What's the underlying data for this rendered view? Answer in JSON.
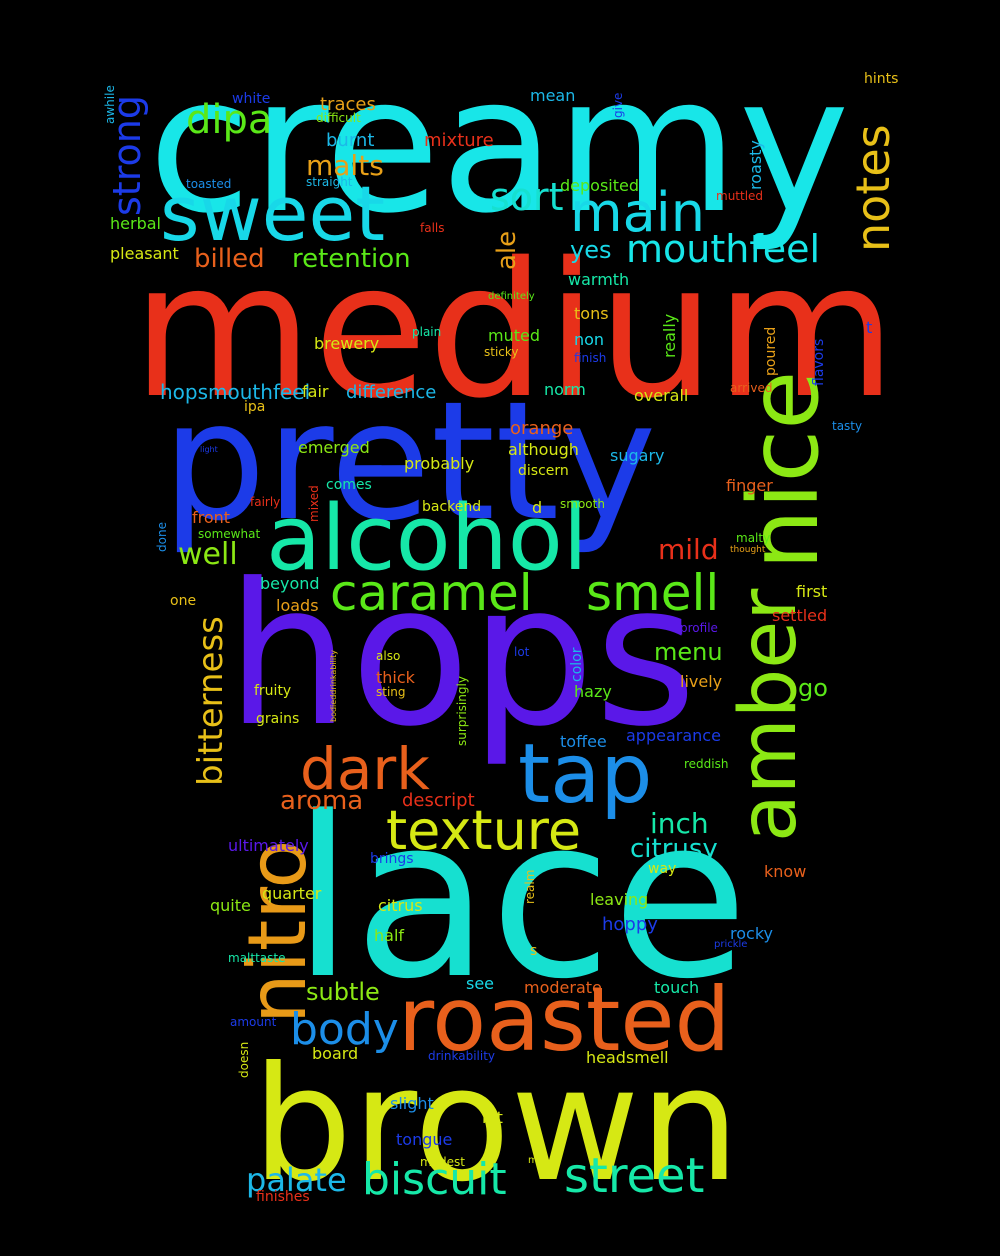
{
  "words": [
    {
      "text": "creamy",
      "color": "#18e6e8"
    },
    {
      "text": "medium",
      "color": "#e8301a"
    },
    {
      "text": "pretty",
      "color": "#1c3be8"
    },
    {
      "text": "hops",
      "color": "#5a18e8"
    },
    {
      "text": "lace",
      "color": "#16e0d0"
    },
    {
      "text": "brown",
      "color": "#d6e814"
    },
    {
      "text": "roasted",
      "color": "#e8601c"
    },
    {
      "text": "alcohol",
      "color": "#16e8a8"
    },
    {
      "text": "sweet",
      "color": "#18d8e8"
    },
    {
      "text": "nice",
      "color": "#8ce814"
    },
    {
      "text": "amber",
      "color": "#8ce814"
    },
    {
      "text": "nitro",
      "color": "#e89a18"
    },
    {
      "text": "tap",
      "color": "#1c8ee8"
    },
    {
      "text": "dark",
      "color": "#e8601c"
    },
    {
      "text": "texture",
      "color": "#d6e814"
    },
    {
      "text": "main",
      "color": "#18d8e8"
    },
    {
      "text": "caramel",
      "color": "#5ae818"
    },
    {
      "text": "smell",
      "color": "#5ae818"
    },
    {
      "text": "body",
      "color": "#1c8ee8"
    },
    {
      "text": "street",
      "color": "#16e8a8"
    },
    {
      "text": "biscuit",
      "color": "#16e8a8"
    },
    {
      "text": "notes",
      "color": "#e8c018"
    },
    {
      "text": "mouthfeel",
      "color": "#18e6e8"
    },
    {
      "text": "dipa",
      "color": "#5ae818"
    },
    {
      "text": "sort",
      "color": "#16e0d0"
    },
    {
      "text": "strong",
      "color": "#1c3be8"
    },
    {
      "text": "bitterness",
      "color": "#e8c018"
    },
    {
      "text": "palate",
      "color": "#1cb8e8"
    },
    {
      "text": "malts",
      "color": "#e8a018"
    },
    {
      "text": "retention",
      "color": "#5ae818"
    },
    {
      "text": "billed",
      "color": "#e8601c"
    },
    {
      "text": "well",
      "color": "#8ce814"
    },
    {
      "text": "mild",
      "color": "#e8301a"
    },
    {
      "text": "aroma",
      "color": "#e8601c"
    },
    {
      "text": "inch",
      "color": "#16e8a8"
    },
    {
      "text": "citrusy",
      "color": "#16e0d0"
    },
    {
      "text": "subtle",
      "color": "#8ce814"
    },
    {
      "text": "menu",
      "color": "#5ae818"
    },
    {
      "text": "go",
      "color": "#5ae818"
    },
    {
      "text": "ale",
      "color": "#e8a018"
    },
    {
      "text": "yes",
      "color": "#18d8e8"
    },
    {
      "text": "hopsmouthfeel",
      "color": "#1cb8e8"
    },
    {
      "text": "difference",
      "color": "#1cb8e8"
    },
    {
      "text": "traces",
      "color": "#e8a018"
    },
    {
      "text": "burnt",
      "color": "#1cb8e8"
    },
    {
      "text": "mixture",
      "color": "#e8301a"
    },
    {
      "text": "white",
      "color": "#1c3be8"
    },
    {
      "text": "difficult",
      "color": "#8ce814"
    },
    {
      "text": "mean",
      "color": "#1cb8e8"
    },
    {
      "text": "hints",
      "color": "#e8c018"
    },
    {
      "text": "give",
      "color": "#1c3be8"
    },
    {
      "text": "awhile",
      "color": "#1cb8e8"
    },
    {
      "text": "toasted",
      "color": "#1c8ee8"
    },
    {
      "text": "straight",
      "color": "#1cb8e8"
    },
    {
      "text": "deposited",
      "color": "#5ae818"
    },
    {
      "text": "muttled",
      "color": "#e8301a"
    },
    {
      "text": "roasty",
      "color": "#1cb8e8"
    },
    {
      "text": "herbal",
      "color": "#5ae818"
    },
    {
      "text": "falls",
      "color": "#e8301a"
    },
    {
      "text": "pleasant",
      "color": "#d6e814"
    },
    {
      "text": "warmth",
      "color": "#16e8a8"
    },
    {
      "text": "definitely",
      "color": "#5ae818"
    },
    {
      "text": "tons",
      "color": "#e8c018"
    },
    {
      "text": "plain",
      "color": "#16e8a8"
    },
    {
      "text": "muted",
      "color": "#5ae818"
    },
    {
      "text": "brewery",
      "color": "#d6e814"
    },
    {
      "text": "sticky",
      "color": "#e8c018"
    },
    {
      "text": "non",
      "color": "#18d8e8"
    },
    {
      "text": "finish",
      "color": "#1c3be8"
    },
    {
      "text": "really",
      "color": "#5ae818"
    },
    {
      "text": "poured",
      "color": "#e8a018"
    },
    {
      "text": "flavors",
      "color": "#1c3be8"
    },
    {
      "text": "t",
      "color": "#1c3be8"
    },
    {
      "text": "fair",
      "color": "#d6e814"
    },
    {
      "text": "ipa",
      "color": "#e8c018"
    },
    {
      "text": "norm",
      "color": "#16e8a8"
    },
    {
      "text": "overall",
      "color": "#d6e814"
    },
    {
      "text": "arrived",
      "color": "#e8601c"
    },
    {
      "text": "tasty",
      "color": "#1c8ee8"
    },
    {
      "text": "light",
      "color": "#1c3be8"
    },
    {
      "text": "orange",
      "color": "#e8601c"
    },
    {
      "text": "although",
      "color": "#d6e814"
    },
    {
      "text": "sugary",
      "color": "#1cb8e8"
    },
    {
      "text": "emerged",
      "color": "#8ce814"
    },
    {
      "text": "probably",
      "color": "#d6e814"
    },
    {
      "text": "discern",
      "color": "#d6e814"
    },
    {
      "text": "comes",
      "color": "#16e8a8"
    },
    {
      "text": "mixed",
      "color": "#e8301a"
    },
    {
      "text": "finger",
      "color": "#e8601c"
    },
    {
      "text": "fairly",
      "color": "#e8301a"
    },
    {
      "text": "backend",
      "color": "#d6e814"
    },
    {
      "text": "d",
      "color": "#d6e814"
    },
    {
      "text": "smooth",
      "color": "#8ce814"
    },
    {
      "text": "front",
      "color": "#e8601c"
    },
    {
      "text": "somewhat",
      "color": "#5ae818"
    },
    {
      "text": "malty",
      "color": "#5ae818"
    },
    {
      "text": "thought",
      "color": "#e8a018"
    },
    {
      "text": "done",
      "color": "#1c8ee8"
    },
    {
      "text": "beyond",
      "color": "#16e8a8"
    },
    {
      "text": "first",
      "color": "#d6e814"
    },
    {
      "text": "one",
      "color": "#e8c018"
    },
    {
      "text": "loads",
      "color": "#e8a018"
    },
    {
      "text": "settled",
      "color": "#e8301a"
    },
    {
      "text": "profile",
      "color": "#5a18e8"
    },
    {
      "text": "bodieddrinkability",
      "color": "#e8c018"
    },
    {
      "text": "also",
      "color": "#d6e814"
    },
    {
      "text": "lot",
      "color": "#1c3be8"
    },
    {
      "text": "color",
      "color": "#1cb8e8"
    },
    {
      "text": "surprisingly",
      "color": "#8ce814"
    },
    {
      "text": "thick",
      "color": "#e8601c"
    },
    {
      "text": "sting",
      "color": "#e8c018"
    },
    {
      "text": "lively",
      "color": "#e8a018"
    },
    {
      "text": "fruity",
      "color": "#d6e814"
    },
    {
      "text": "hazy",
      "color": "#5ae818"
    },
    {
      "text": "grains",
      "color": "#d6e814"
    },
    {
      "text": "appearance",
      "color": "#1c3be8"
    },
    {
      "text": "toffee",
      "color": "#1c8ee8"
    },
    {
      "text": "reddish",
      "color": "#5ae818"
    },
    {
      "text": "descript",
      "color": "#e8301a"
    },
    {
      "text": "ultimately",
      "color": "#5a18e8"
    },
    {
      "text": "brings",
      "color": "#1c3be8"
    },
    {
      "text": "know",
      "color": "#e8601c"
    },
    {
      "text": "way",
      "color": "#d6e814"
    },
    {
      "text": "realm",
      "color": "#e8c018"
    },
    {
      "text": "quarter",
      "color": "#d6e814"
    },
    {
      "text": "quite",
      "color": "#8ce814"
    },
    {
      "text": "citrus",
      "color": "#d6e814"
    },
    {
      "text": "leaving",
      "color": "#8ce814"
    },
    {
      "text": "hoppy",
      "color": "#1c3be8"
    },
    {
      "text": "rocky",
      "color": "#1c8ee8"
    },
    {
      "text": "half",
      "color": "#8ce814"
    },
    {
      "text": "prickle",
      "color": "#1c3be8"
    },
    {
      "text": "malttaste",
      "color": "#16e8a8"
    },
    {
      "text": "s",
      "color": "#e8c018"
    },
    {
      "text": "see",
      "color": "#18d8e8"
    },
    {
      "text": "moderate",
      "color": "#e8601c"
    },
    {
      "text": "touch",
      "color": "#16e8a8"
    },
    {
      "text": "amount",
      "color": "#1c3be8"
    },
    {
      "text": "doesn",
      "color": "#d6e814"
    },
    {
      "text": "board",
      "color": "#d6e814"
    },
    {
      "text": "drinkability",
      "color": "#1c3be8"
    },
    {
      "text": "headsmell",
      "color": "#d6e814"
    },
    {
      "text": "slight",
      "color": "#1c8ee8"
    },
    {
      "text": "bit",
      "color": "#d6e814"
    },
    {
      "text": "tongue",
      "color": "#1c3be8"
    },
    {
      "text": "modest",
      "color": "#d6e814"
    },
    {
      "text": "m",
      "color": "#d6e814"
    },
    {
      "text": "finishes",
      "color": "#e8301a"
    }
  ]
}
